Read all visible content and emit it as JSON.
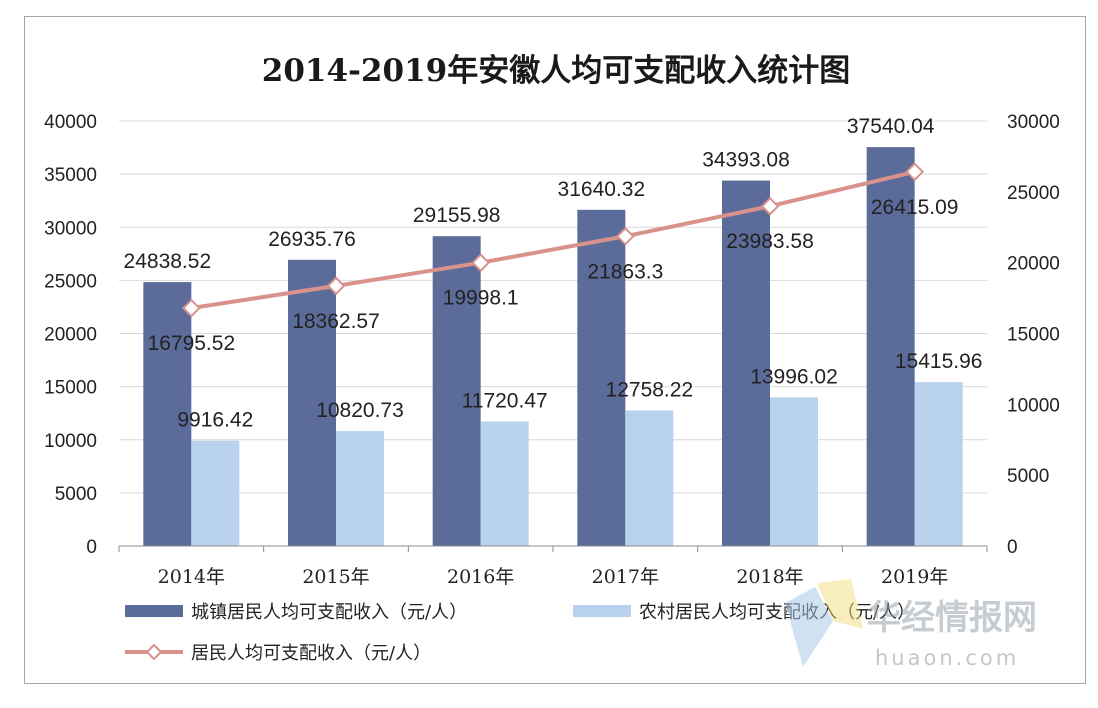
{
  "chart_data": {
    "type": "bar",
    "title": "2014-2019年安徽人均可支配收入统计图",
    "categories": [
      "2014年",
      "2015年",
      "2016年",
      "2017年",
      "2018年",
      "2019年"
    ],
    "series": [
      {
        "name": "城镇居民人均可支配收入（元/人）",
        "type": "bar",
        "axis": "left",
        "color": "#5b6c9a",
        "values": [
          24838.52,
          26935.76,
          29155.98,
          31640.32,
          34393.08,
          37540.04
        ],
        "labels": [
          "24838.52",
          "26935.76",
          "29155.98",
          "31640.32",
          "34393.08",
          "37540.04"
        ]
      },
      {
        "name": "农村居民人均可支配收入（元/人）",
        "type": "bar",
        "axis": "left",
        "color": "#b9d3ee",
        "values": [
          9916.42,
          10820.73,
          11720.47,
          12758.22,
          13996.02,
          15415.96
        ],
        "labels": [
          "9916.42",
          "10820.73",
          "11720.47",
          "12758.22",
          "13996.02",
          "15415.96"
        ]
      },
      {
        "name": "居民人均可支配收入（元/人）",
        "type": "line",
        "axis": "right",
        "color": "#d9918c",
        "values": [
          16795.52,
          18362.57,
          19998.1,
          21863.3,
          23983.58,
          26415.09
        ],
        "labels": [
          "16795.52",
          "18362.57",
          "19998.1",
          "21863.3",
          "23983.58",
          "26415.09"
        ]
      }
    ],
    "y_left": {
      "ylim": [
        0,
        40000
      ],
      "ticks": [
        "0",
        "5000",
        "10000",
        "15000",
        "20000",
        "25000",
        "30000",
        "35000",
        "40000"
      ]
    },
    "y_right": {
      "ylim": [
        0,
        30000
      ],
      "ticks": [
        "0",
        "5000",
        "10000",
        "15000",
        "20000",
        "25000",
        "30000"
      ]
    },
    "grid": true,
    "legend_position": "bottom"
  },
  "watermark": {
    "main": "华经情报网",
    "sub": "huaon.com"
  }
}
